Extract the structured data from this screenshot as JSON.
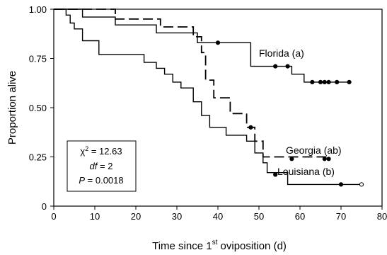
{
  "chart_data": {
    "type": "line",
    "title": "",
    "xlabel": "Time since 1st oviposition (d)",
    "xlabel_main": "Time since 1",
    "xlabel_sup": "st",
    "xlabel_tail": " oviposition (d)",
    "ylabel": "Proportion alive",
    "xlim": [
      0,
      80
    ],
    "ylim": [
      0,
      1.0
    ],
    "x_ticks": [
      0,
      10,
      20,
      30,
      40,
      50,
      60,
      70,
      80
    ],
    "y_ticks": [
      0,
      0.25,
      0.5,
      0.75,
      1.0
    ],
    "y_tick_labels": [
      "0",
      "0.25",
      "0.50",
      "0.75",
      "1.00"
    ],
    "grid": false,
    "series": [
      {
        "name": "Florida",
        "group_label": "(a)",
        "style": "solid",
        "points": [
          [
            0,
            1.0
          ],
          [
            7,
            1.0
          ],
          [
            7,
            0.96
          ],
          [
            15,
            0.96
          ],
          [
            15,
            0.92
          ],
          [
            25,
            0.92
          ],
          [
            25,
            0.88
          ],
          [
            35,
            0.88
          ],
          [
            35,
            0.83
          ],
          [
            48,
            0.83
          ],
          [
            48,
            0.71
          ],
          [
            58,
            0.71
          ],
          [
            58,
            0.67
          ],
          [
            61,
            0.67
          ],
          [
            61,
            0.63
          ],
          [
            72,
            0.63
          ]
        ],
        "censored": [
          [
            40,
            0.83
          ],
          [
            54,
            0.71
          ],
          [
            57,
            0.71
          ],
          [
            63,
            0.63
          ],
          [
            65,
            0.63
          ],
          [
            66,
            0.63
          ],
          [
            67,
            0.63
          ],
          [
            69,
            0.63
          ],
          [
            72,
            0.63
          ]
        ]
      },
      {
        "name": "Georgia",
        "group_label": "(ab)",
        "style": "dashed",
        "points": [
          [
            0,
            1.0
          ],
          [
            15,
            1.0
          ],
          [
            15,
            0.95
          ],
          [
            26,
            0.95
          ],
          [
            26,
            0.91
          ],
          [
            34,
            0.91
          ],
          [
            34,
            0.86
          ],
          [
            36,
            0.86
          ],
          [
            36,
            0.78
          ],
          [
            37,
            0.78
          ],
          [
            37,
            0.64
          ],
          [
            39,
            0.64
          ],
          [
            39,
            0.55
          ],
          [
            43,
            0.55
          ],
          [
            43,
            0.47
          ],
          [
            47,
            0.47
          ],
          [
            47,
            0.4
          ],
          [
            49,
            0.4
          ],
          [
            49,
            0.33
          ],
          [
            51,
            0.33
          ],
          [
            51,
            0.25
          ],
          [
            67,
            0.25
          ]
        ],
        "censored": [
          [
            48,
            0.4
          ],
          [
            58,
            0.24
          ],
          [
            66,
            0.24
          ],
          [
            67,
            0.24
          ]
        ]
      },
      {
        "name": "Louisiana",
        "group_label": "(b)",
        "style": "solid",
        "points": [
          [
            0,
            1.0
          ],
          [
            3,
            1.0
          ],
          [
            3,
            0.97
          ],
          [
            4,
            0.97
          ],
          [
            4,
            0.93
          ],
          [
            5,
            0.93
          ],
          [
            5,
            0.9
          ],
          [
            7,
            0.9
          ],
          [
            7,
            0.84
          ],
          [
            11,
            0.84
          ],
          [
            11,
            0.77
          ],
          [
            22,
            0.77
          ],
          [
            22,
            0.73
          ],
          [
            25,
            0.73
          ],
          [
            25,
            0.7
          ],
          [
            27,
            0.7
          ],
          [
            27,
            0.67
          ],
          [
            29,
            0.67
          ],
          [
            29,
            0.63
          ],
          [
            31,
            0.63
          ],
          [
            31,
            0.6
          ],
          [
            34,
            0.6
          ],
          [
            34,
            0.53
          ],
          [
            36,
            0.53
          ],
          [
            36,
            0.46
          ],
          [
            38,
            0.46
          ],
          [
            38,
            0.4
          ],
          [
            42,
            0.4
          ],
          [
            42,
            0.36
          ],
          [
            47,
            0.36
          ],
          [
            47,
            0.33
          ],
          [
            49,
            0.33
          ],
          [
            49,
            0.27
          ],
          [
            51,
            0.27
          ],
          [
            51,
            0.22
          ],
          [
            52,
            0.22
          ],
          [
            52,
            0.17
          ],
          [
            57,
            0.17
          ],
          [
            57,
            0.11
          ],
          [
            75,
            0.11
          ]
        ],
        "censored": [
          [
            54,
            0.16
          ],
          [
            70,
            0.11
          ],
          [
            75,
            0.11
          ]
        ]
      }
    ],
    "stats": {
      "chi": "χ",
      "chi_sup": "2",
      "chi_value": " = 12.63",
      "df_label": "df",
      "df_value": " = 2",
      "p_label": "P",
      "p_value": " = 0.0018"
    }
  }
}
